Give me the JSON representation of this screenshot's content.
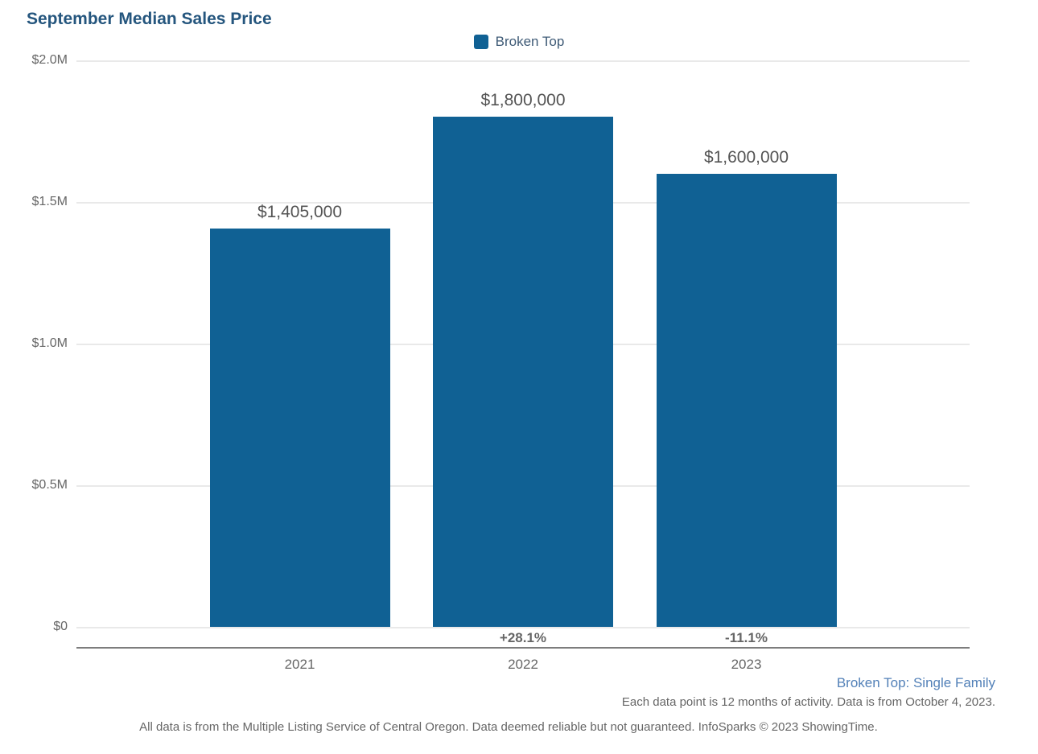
{
  "title": "September Median Sales Price",
  "colors": {
    "bar": "#106194",
    "title_text": "#25567E",
    "legend_text": "#3E5A76",
    "axis_text": "#666666",
    "value_text": "#545454",
    "pct_text": "#666666",
    "footnote_link": "#5381B8",
    "footnote_text": "#666666",
    "gridline": "#E9E9E9",
    "axis_line": "#7D7D7D"
  },
  "legend": {
    "items": [
      {
        "label": "Broken Top",
        "color": "#106194"
      }
    ]
  },
  "chart_data": {
    "type": "bar",
    "title": "September Median Sales Price",
    "categories": [
      "2021",
      "2022",
      "2023"
    ],
    "series": [
      {
        "name": "Broken Top",
        "values": [
          1405000,
          1800000,
          1600000
        ]
      }
    ],
    "value_labels": [
      "$1,405,000",
      "$1,800,000",
      "$1,600,000"
    ],
    "pct_change_labels": [
      "",
      "+28.1%",
      "-11.1%"
    ],
    "y_tick_labels": [
      "$2.0M",
      "$1.5M",
      "$1.0M",
      "$0.5M",
      "$0"
    ],
    "ylim": [
      0,
      2000000
    ],
    "grid": "horizontal",
    "legend_position": "top-center",
    "xlabel": "",
    "ylabel": ""
  },
  "footnotes": {
    "series_note": "Broken Top: Single Family",
    "activity_note": "Each data point is 12 months of activity. Data is from October 4, 2023.",
    "disclaimer": "All data is from the Multiple Listing Service of Central Oregon. Data deemed reliable but not guaranteed. InfoSparks © 2023 ShowingTime."
  }
}
